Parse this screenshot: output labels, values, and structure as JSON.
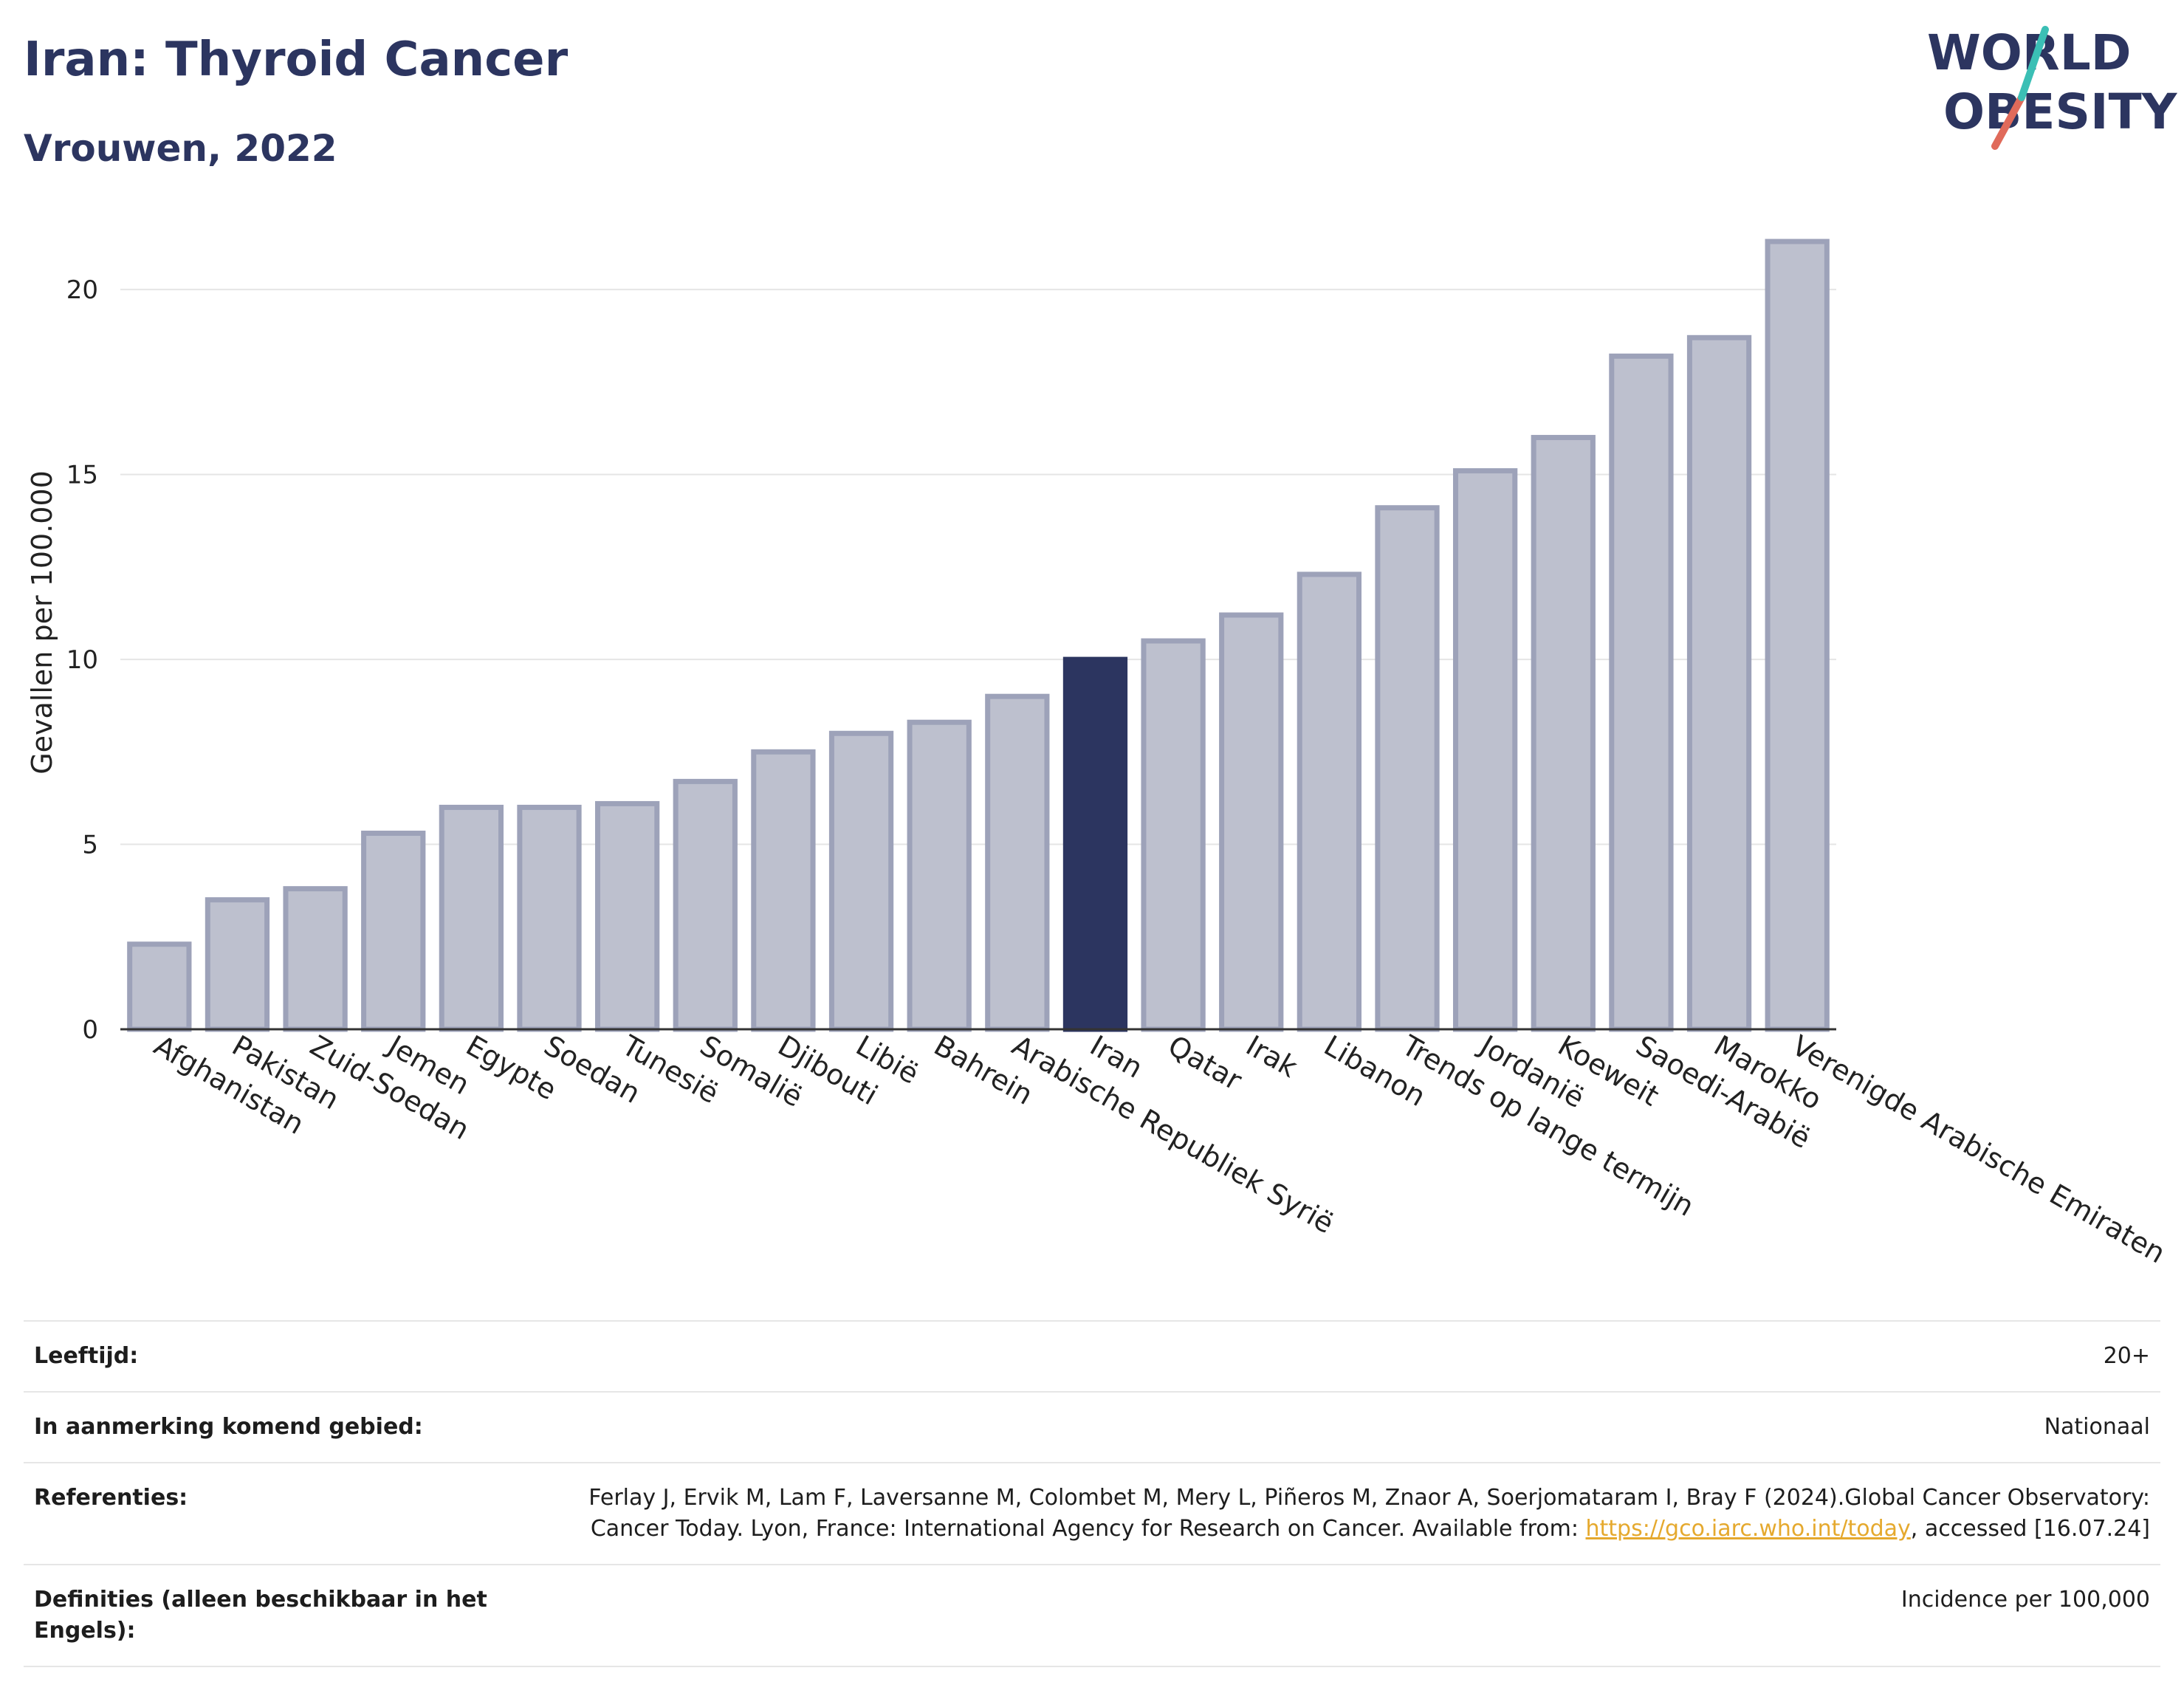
{
  "header": {
    "title": "Iran: Thyroid Cancer",
    "subtitle": "Vrouwen, 2022"
  },
  "logo": {
    "line1": "WORLD",
    "line2": "OBESITY"
  },
  "colors": {
    "highlight": "#2c3560",
    "bar_fill": "#bdc0ce",
    "bar_stroke": "#9da2b9",
    "grid": "#e5e5e5",
    "logo_text": "#2c3560",
    "logo_slash_red": "#e06a5a",
    "logo_slash_teal": "#3bbfb5"
  },
  "chart_data": {
    "type": "bar",
    "ylabel": "Gevallen per 100.000",
    "ylim": [
      0,
      22
    ],
    "yticks": [
      0,
      5,
      10,
      15,
      20
    ],
    "grid": true,
    "highlight": "Iran",
    "categories": [
      "Afghanistan",
      "Pakistan",
      "Zuid-Soedan",
      "Jemen",
      "Egypte",
      "Soedan",
      "Tunesië",
      "Somalië",
      "Djibouti",
      "Libië",
      "Bahrein",
      "Arabische Republiek Syrië",
      "Iran",
      "Qatar",
      "Irak",
      "Libanon",
      "Trends op lange termijn",
      "Jordanië",
      "Koeweit",
      "Saoedi-Arabië",
      "Marokko",
      "Verenigde Arabische Emiraten"
    ],
    "values": [
      2.3,
      3.5,
      3.8,
      5.3,
      6.0,
      6.0,
      6.1,
      6.7,
      7.5,
      8.0,
      8.3,
      9.0,
      10.0,
      10.5,
      11.2,
      12.3,
      14.1,
      15.1,
      16.0,
      18.2,
      18.7,
      21.3
    ]
  },
  "footer": {
    "rows": [
      {
        "label": "Leeftijd:",
        "value": "20+"
      },
      {
        "label": "In aanmerking komend gebied:",
        "value": "Nationaal"
      },
      {
        "label": "Referenties:",
        "value": "Ferlay J, Ervik M, Lam F, Laversanne M, Colombet M, Mery L, Piñeros M, Znaor A, Soerjomataram I, Bray F (2024).Global Cancer Observatory: Cancer Today. Lyon, France: International Agency for Research on Cancer. Available from:",
        "link": "https://gco.iarc.who.int/today",
        "after": ", accessed [16.07.24]"
      },
      {
        "label": "Definities (alleen beschikbaar in het Engels):",
        "value": "Incidence per 100,000"
      }
    ]
  }
}
